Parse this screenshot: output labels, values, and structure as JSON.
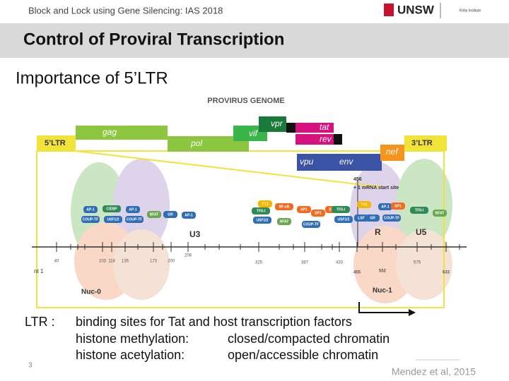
{
  "header": {
    "text": "Block and Lock using Gene Silencing: IAS 2018",
    "logo": "UNSW",
    "logo2": "Kirby Institute"
  },
  "title": "Control of Proviral Transcription",
  "subtitle": "Importance of 5’LTR",
  "figure": {
    "title": "PROVIRUS GENOME",
    "genes": [
      "gag",
      "pol",
      "vif",
      "vpr",
      "tat",
      "rev",
      "vpu",
      "env",
      "nef"
    ],
    "ltrs": [
      "5’LTR",
      "3’LTR"
    ],
    "regions": [
      "U3",
      "R",
      "U5"
    ],
    "start_site": [
      "456",
      "+ 1 mRNA start site"
    ],
    "nucleosomes": [
      "Nuc-0",
      "Nuc-1"
    ],
    "nt": "nt 1",
    "positions": [
      "40",
      "103",
      "118",
      "135",
      "173",
      "200",
      "208",
      "325",
      "387",
      "433",
      "455",
      "552",
      "575",
      "633"
    ],
    "factors": [
      "AP-1",
      "COUP-TF",
      "USF1/2",
      "C/EBP",
      "AP-1",
      "COUP-TF",
      "NFAT",
      "GR",
      "AP-1",
      "YY1",
      "TFII-I",
      "USF1/2",
      "NF-κB",
      "NFAT",
      "SP1",
      "SP1",
      "SP1",
      "COUP-TF",
      "TFII-I",
      "USF1/2",
      "YY1",
      "LSF",
      "GR",
      "AP-1",
      "SP1",
      "COUP-TF",
      "TFII-I",
      "NFAT"
    ]
  },
  "body": {
    "label": "LTR :",
    "lines": [
      [
        "binding sites for Tat and host transcription factors"
      ],
      [
        "histone methylation:",
        "closed/compacted chromatin"
      ],
      [
        "histone acetylation:",
        "open/accessible chromatin"
      ]
    ]
  },
  "citation": "Mendez et al, 2015",
  "slide_number": "3"
}
